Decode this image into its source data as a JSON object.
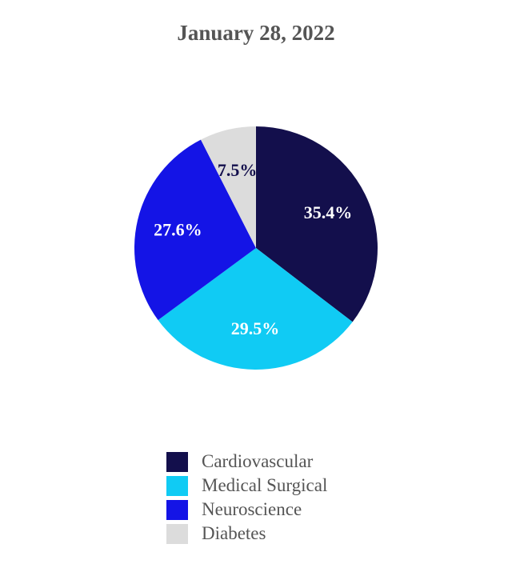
{
  "chart_data": {
    "type": "pie",
    "title": "January 28, 2022",
    "slices": [
      {
        "label": "Cardiovascular",
        "value": 35.4,
        "display": "35.4%",
        "color": "#130f4c",
        "label_color": "#ffffff"
      },
      {
        "label": "Medical Surgical",
        "value": 29.5,
        "display": "29.5%",
        "color": "#10cbf4",
        "label_color": "#ffffff"
      },
      {
        "label": "Neuroscience",
        "value": 27.6,
        "display": "27.6%",
        "color": "#1414e6",
        "label_color": "#ffffff"
      },
      {
        "label": "Diabetes",
        "value": 7.5,
        "display": "7.5%",
        "color": "#dcdcdc",
        "label_color": "#130f4c"
      }
    ],
    "start_angle": "12 o'clock",
    "direction": "clockwise",
    "legend_position": "bottom"
  }
}
